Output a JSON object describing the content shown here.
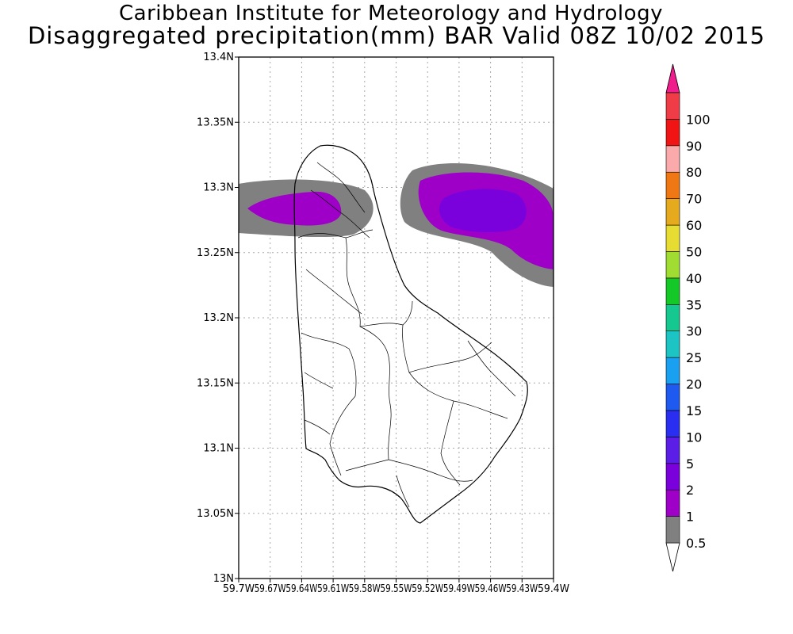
{
  "header": {
    "line1": "Caribbean Institute for Meteorology and Hydrology",
    "line2": "Disaggregated precipitation(mm) BAR Valid 08Z 10/02 2015"
  },
  "map": {
    "lat_range": [
      13.0,
      13.4
    ],
    "lon_range": [
      -59.7,
      -59.4
    ],
    "grid": true,
    "lat_ticks": [
      {
        "value": 13.0,
        "label": "13N"
      },
      {
        "value": 13.05,
        "label": "13.05N"
      },
      {
        "value": 13.1,
        "label": "13.1N"
      },
      {
        "value": 13.15,
        "label": "13.15N"
      },
      {
        "value": 13.2,
        "label": "13.2N"
      },
      {
        "value": 13.25,
        "label": "13.25N"
      },
      {
        "value": 13.3,
        "label": "13.3N"
      },
      {
        "value": 13.35,
        "label": "13.35N"
      },
      {
        "value": 13.4,
        "label": "13.4N"
      }
    ],
    "lon_ticks": [
      {
        "value": -59.7,
        "label": "59.7W"
      },
      {
        "value": -59.67,
        "label": "59.67W"
      },
      {
        "value": -59.64,
        "label": "59.64W"
      },
      {
        "value": -59.61,
        "label": "59.61W"
      },
      {
        "value": -59.58,
        "label": "59.58W"
      },
      {
        "value": -59.55,
        "label": "59.55W"
      },
      {
        "value": -59.52,
        "label": "59.52W"
      },
      {
        "value": -59.49,
        "label": "59.49W"
      },
      {
        "value": -59.46,
        "label": "59.46W"
      },
      {
        "value": -59.43,
        "label": "59.43W"
      },
      {
        "value": -59.4,
        "label": "59.4W"
      }
    ]
  },
  "legend": {
    "levels": [
      {
        "label": "0.5",
        "color": "#808080"
      },
      {
        "label": "1",
        "color": "#9e00c8"
      },
      {
        "label": "2",
        "color": "#7a00dc"
      },
      {
        "label": "5",
        "color": "#5a1ee6"
      },
      {
        "label": "10",
        "color": "#2a2ef0"
      },
      {
        "label": "15",
        "color": "#1e5af0"
      },
      {
        "label": "20",
        "color": "#1aa0f0"
      },
      {
        "label": "25",
        "color": "#1cc4c4"
      },
      {
        "label": "30",
        "color": "#14c890"
      },
      {
        "label": "35",
        "color": "#14c828"
      },
      {
        "label": "40",
        "color": "#a0dc32"
      },
      {
        "label": "50",
        "color": "#e6dc32"
      },
      {
        "label": "60",
        "color": "#e6aa1e"
      },
      {
        "label": "70",
        "color": "#f07814"
      },
      {
        "label": "80",
        "color": "#faaaaa"
      },
      {
        "label": "90",
        "color": "#f01414"
      },
      {
        "label": "100",
        "color": "#f03c46"
      }
    ],
    "under_color": "#ffffff",
    "over_color": "#f01e8c"
  }
}
